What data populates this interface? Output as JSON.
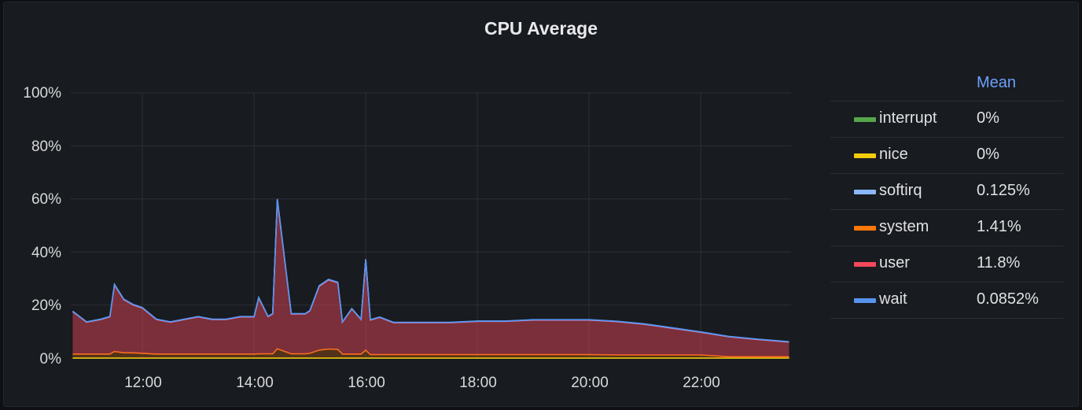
{
  "panel": {
    "title": "CPU Average"
  },
  "legend": {
    "header": "Mean",
    "items": [
      {
        "name": "interrupt",
        "value": "0%",
        "color": "#56a64b"
      },
      {
        "name": "nice",
        "value": "0%",
        "color": "#f2cc0c"
      },
      {
        "name": "softirq",
        "value": "0.125%",
        "color": "#8ab8ff"
      },
      {
        "name": "system",
        "value": "1.41%",
        "color": "#ff780a"
      },
      {
        "name": "user",
        "value": "11.8%",
        "color": "#f2495c"
      },
      {
        "name": "wait",
        "value": "0.0852%",
        "color": "#5794f2"
      }
    ]
  },
  "axes": {
    "y_ticks": [
      "100%",
      "80%",
      "60%",
      "40%",
      "20%",
      "0%"
    ],
    "x_ticks": [
      "12:00",
      "14:00",
      "16:00",
      "18:00",
      "20:00",
      "22:00"
    ]
  },
  "chart_data": {
    "type": "area",
    "title": "CPU Average",
    "xlabel": "",
    "ylabel": "",
    "ylim": [
      0,
      100
    ],
    "xlim": [
      "10:43",
      "23:35"
    ],
    "grid": true,
    "legend_position": "right",
    "stacked": true,
    "x": [
      "10:45",
      "11:00",
      "11:15",
      "11:25",
      "11:30",
      "11:40",
      "11:50",
      "12:00",
      "12:15",
      "12:30",
      "12:45",
      "13:00",
      "13:15",
      "13:30",
      "13:45",
      "14:00",
      "14:05",
      "14:15",
      "14:20",
      "14:25",
      "14:40",
      "14:55",
      "15:00",
      "15:10",
      "15:20",
      "15:30",
      "15:35",
      "15:45",
      "15:55",
      "16:00",
      "16:05",
      "16:15",
      "16:30",
      "17:00",
      "17:30",
      "18:00",
      "18:30",
      "19:00",
      "19:30",
      "20:00",
      "20:30",
      "21:00",
      "21:30",
      "22:00",
      "22:30",
      "23:00",
      "23:35"
    ],
    "series": [
      {
        "name": "user",
        "color": "#f2495c",
        "values": [
          16,
          12,
          13,
          14,
          25,
          20,
          18,
          17,
          13,
          12,
          13,
          14,
          13,
          13,
          14,
          14,
          21,
          14,
          15,
          56,
          15,
          15,
          16,
          24,
          26,
          25,
          12,
          17,
          13,
          34,
          13,
          14,
          12,
          12,
          12,
          12.5,
          12.5,
          13,
          13,
          13,
          12.5,
          11.5,
          10,
          8.5,
          7.5,
          6.5,
          5.5
        ]
      },
      {
        "name": "system",
        "color": "#ff780a",
        "values": [
          1.5,
          1.5,
          1.5,
          1.5,
          2.5,
          2,
          2,
          1.8,
          1.5,
          1.5,
          1.5,
          1.5,
          1.5,
          1.5,
          1.5,
          1.5,
          1.6,
          1.6,
          1.6,
          3.5,
          1.6,
          1.6,
          1.8,
          3,
          3.4,
          3.3,
          1.5,
          1.5,
          1.5,
          3,
          1.3,
          1.3,
          1.3,
          1.3,
          1.3,
          1.3,
          1.3,
          1.3,
          1.3,
          1.3,
          1.2,
          1.2,
          1.2,
          1.2,
          0.5,
          0.5,
          0.5
        ]
      },
      {
        "name": "softirq",
        "color": "#8ab8ff",
        "values": [
          0.1,
          0.1,
          0.1,
          0.1,
          0.2,
          0.15,
          0.15,
          0.15,
          0.1,
          0.1,
          0.1,
          0.1,
          0.1,
          0.1,
          0.1,
          0.1,
          0.15,
          0.1,
          0.1,
          0.3,
          0.1,
          0.1,
          0.1,
          0.2,
          0.2,
          0.2,
          0.1,
          0.1,
          0.1,
          0.2,
          0.1,
          0.1,
          0.1,
          0.1,
          0.1,
          0.1,
          0.1,
          0.1,
          0.1,
          0.1,
          0.1,
          0.1,
          0.1,
          0.1,
          0.1,
          0.1,
          0.1
        ]
      },
      {
        "name": "wait",
        "color": "#5794f2",
        "values": [
          0.08,
          0.08,
          0.08,
          0.08,
          0.1,
          0.09,
          0.09,
          0.09,
          0.08,
          0.08,
          0.08,
          0.08,
          0.08,
          0.08,
          0.08,
          0.08,
          0.09,
          0.08,
          0.08,
          0.2,
          0.08,
          0.08,
          0.08,
          0.1,
          0.1,
          0.1,
          0.08,
          0.08,
          0.08,
          0.1,
          0.08,
          0.08,
          0.08,
          0.08,
          0.08,
          0.08,
          0.08,
          0.08,
          0.08,
          0.08,
          0.08,
          0.08,
          0.08,
          0.08,
          0.08,
          0.08,
          0.08
        ]
      },
      {
        "name": "nice",
        "color": "#f2cc0c",
        "values": [
          0,
          0,
          0,
          0,
          0,
          0,
          0,
          0,
          0,
          0,
          0,
          0,
          0,
          0,
          0,
          0,
          0,
          0,
          0,
          0,
          0,
          0,
          0,
          0,
          0,
          0,
          0,
          0,
          0,
          0,
          0,
          0,
          0,
          0,
          0,
          0,
          0,
          0,
          0,
          0,
          0,
          0,
          0,
          0,
          0,
          0,
          0
        ]
      },
      {
        "name": "interrupt",
        "color": "#56a64b",
        "values": [
          0,
          0,
          0,
          0,
          0,
          0,
          0,
          0,
          0,
          0,
          0,
          0,
          0,
          0,
          0,
          0,
          0,
          0,
          0,
          0,
          0,
          0,
          0,
          0,
          0,
          0,
          0,
          0,
          0,
          0,
          0,
          0,
          0,
          0,
          0,
          0,
          0,
          0,
          0,
          0,
          0,
          0,
          0,
          0,
          0,
          0,
          0
        ]
      }
    ],
    "legend": [
      "interrupt",
      "nice",
      "softirq",
      "system",
      "user",
      "wait"
    ],
    "legend_means": {
      "interrupt": "0%",
      "nice": "0%",
      "softirq": "0.125%",
      "system": "1.41%",
      "user": "11.8%",
      "wait": "0.0852%"
    }
  }
}
